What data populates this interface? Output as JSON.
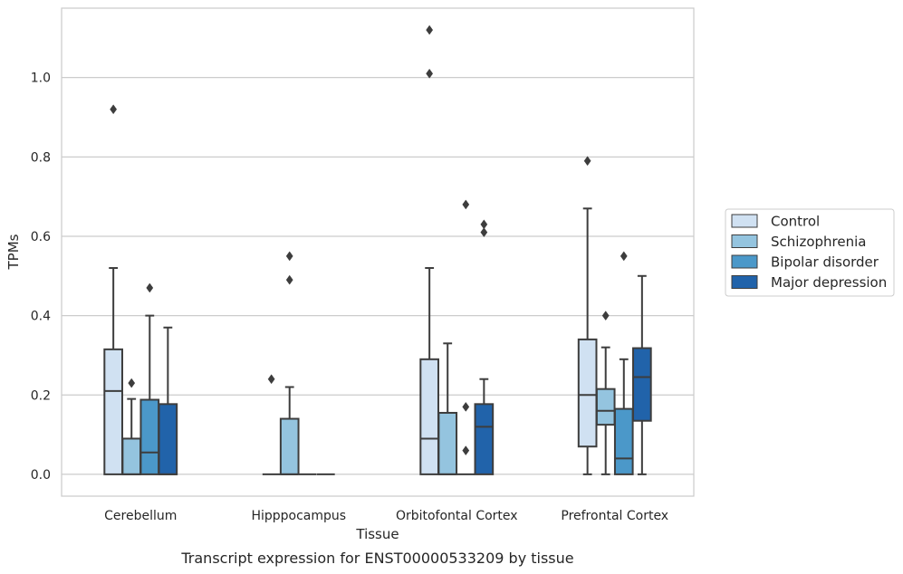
{
  "chart_data": {
    "type": "boxplot",
    "xlabel": "Tissue",
    "ylabel": "TPMs",
    "caption": "Transcript expression for ENST00000533209 by tissue",
    "categories": [
      "Cerebellum",
      "Hipppocampus",
      "Orbitofontal Cortex",
      "Prefrontal Cortex"
    ],
    "yticks": [
      "0.0",
      "0.2",
      "0.4",
      "0.6",
      "0.8",
      "1.0"
    ],
    "ylim": [
      -0.055,
      1.175
    ],
    "grid": "horizontal",
    "legend_position": "right",
    "series": [
      {
        "name": "Control",
        "color": "#d0e1f2",
        "boxes": [
          {
            "q1": 0.0,
            "median": 0.21,
            "q3": 0.315,
            "whisker_low": 0.0,
            "whisker_high": 0.52,
            "outliers": [
              0.92
            ]
          },
          {
            "q1": 0.0,
            "median": 0.0,
            "q3": 0.0,
            "whisker_low": 0.0,
            "whisker_high": 0.0,
            "outliers": [
              0.24
            ]
          },
          {
            "q1": 0.0,
            "median": 0.09,
            "q3": 0.29,
            "whisker_low": 0.0,
            "whisker_high": 0.52,
            "outliers": [
              1.01,
              1.12
            ]
          },
          {
            "q1": 0.07,
            "median": 0.2,
            "q3": 0.34,
            "whisker_low": 0.0,
            "whisker_high": 0.67,
            "outliers": [
              0.79
            ]
          }
        ]
      },
      {
        "name": "Schizophrenia",
        "color": "#94c4df",
        "boxes": [
          {
            "q1": 0.0,
            "median": 0.0,
            "q3": 0.09,
            "whisker_low": 0.0,
            "whisker_high": 0.19,
            "outliers": [
              0.23
            ]
          },
          {
            "q1": 0.0,
            "median": 0.0,
            "q3": 0.14,
            "whisker_low": 0.0,
            "whisker_high": 0.22,
            "outliers": [
              0.49,
              0.55
            ]
          },
          {
            "q1": 0.0,
            "median": 0.0,
            "q3": 0.155,
            "whisker_low": 0.0,
            "whisker_high": 0.33,
            "outliers": []
          },
          {
            "q1": 0.125,
            "median": 0.16,
            "q3": 0.215,
            "whisker_low": 0.0,
            "whisker_high": 0.32,
            "outliers": [
              0.4
            ]
          }
        ]
      },
      {
        "name": "Bipolar disorder",
        "color": "#4b98c9",
        "boxes": [
          {
            "q1": 0.0,
            "median": 0.055,
            "q3": 0.188,
            "whisker_low": 0.0,
            "whisker_high": 0.4,
            "outliers": [
              0.47
            ]
          },
          {
            "q1": 0.0,
            "median": 0.0,
            "q3": 0.0,
            "whisker_low": 0.0,
            "whisker_high": 0.0,
            "outliers": []
          },
          {
            "q1": 0.0,
            "median": 0.0,
            "q3": 0.0,
            "whisker_low": 0.0,
            "whisker_high": 0.0,
            "outliers": [
              0.06,
              0.17,
              0.68
            ]
          },
          {
            "q1": 0.0,
            "median": 0.04,
            "q3": 0.165,
            "whisker_low": 0.0,
            "whisker_high": 0.29,
            "outliers": [
              0.55
            ]
          }
        ]
      },
      {
        "name": "Major depression",
        "color": "#2163aa",
        "boxes": [
          {
            "q1": 0.0,
            "median": 0.0,
            "q3": 0.177,
            "whisker_low": 0.0,
            "whisker_high": 0.37,
            "outliers": []
          },
          {
            "q1": 0.0,
            "median": 0.0,
            "q3": 0.0,
            "whisker_low": 0.0,
            "whisker_high": 0.0,
            "outliers": []
          },
          {
            "q1": 0.0,
            "median": 0.12,
            "q3": 0.177,
            "whisker_low": 0.0,
            "whisker_high": 0.24,
            "outliers": [
              0.61,
              0.63
            ]
          },
          {
            "q1": 0.135,
            "median": 0.245,
            "q3": 0.318,
            "whisker_low": 0.0,
            "whisker_high": 0.5,
            "outliers": []
          }
        ]
      }
    ]
  }
}
